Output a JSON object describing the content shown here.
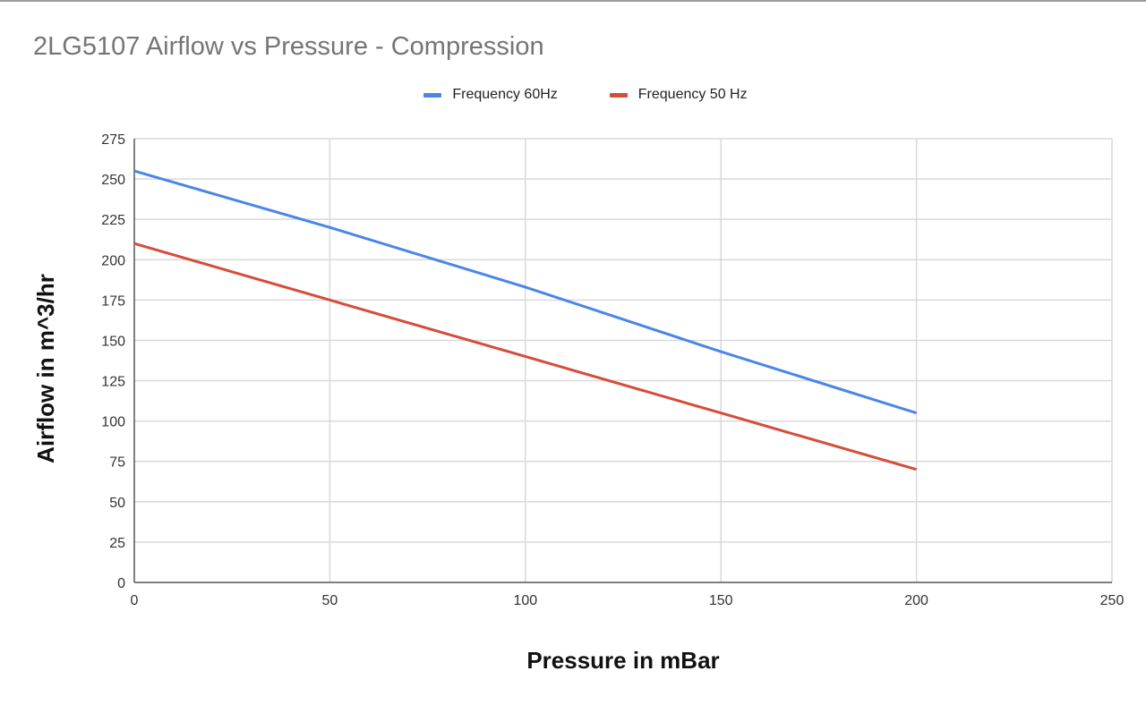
{
  "chart_data": {
    "type": "line",
    "title": "2LG5107 Airflow vs Pressure - Compression",
    "xlabel": "Pressure in mBar",
    "ylabel": "Airflow in m^3/hr",
    "xlim": [
      0,
      250
    ],
    "ylim": [
      0,
      275
    ],
    "xticks": [
      0,
      50,
      100,
      150,
      200,
      250
    ],
    "yticks": [
      0,
      25,
      50,
      75,
      100,
      125,
      150,
      175,
      200,
      225,
      250,
      275
    ],
    "grid": true,
    "legend_position": "top",
    "x": [
      0,
      50,
      100,
      150,
      200
    ],
    "series": [
      {
        "name": "Frequency 60Hz",
        "color": "#4a86e8",
        "values": [
          255,
          220,
          183,
          143,
          105
        ]
      },
      {
        "name": "Frequency 50 Hz",
        "color": "#d64c3b",
        "values": [
          210,
          175,
          140,
          105,
          70
        ]
      }
    ]
  }
}
